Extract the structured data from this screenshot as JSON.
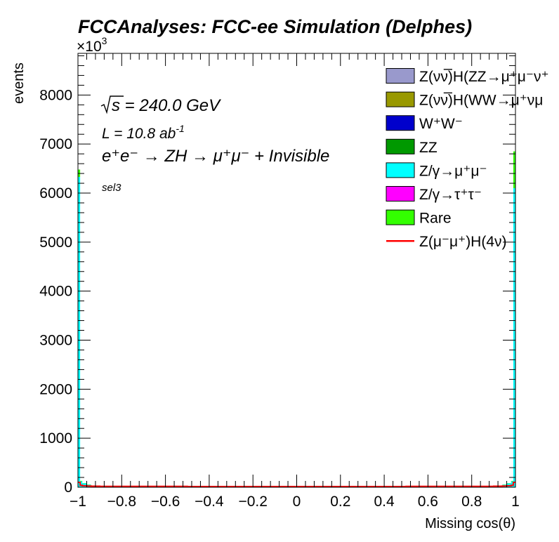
{
  "chart_data": {
    "type": "bar",
    "title": "FCCAnalyses: FCC-ee Simulation (Delphes)",
    "xlabel": "Missing cos(θ)",
    "ylabel": "events",
    "y_multiplier": "×10",
    "y_multiplier_exp": "3",
    "xlim": [
      -1,
      1
    ],
    "ylim": [
      0,
      8850
    ],
    "x_ticks": [
      -1,
      -0.8,
      -0.6,
      -0.4,
      -0.2,
      0,
      0.2,
      0.4,
      0.6,
      0.8,
      1
    ],
    "x_tick_labels": [
      "−1",
      "−0.8",
      "−0.6",
      "−0.4",
      "−0.2",
      "0",
      "0.2",
      "0.4",
      "0.6",
      "0.8",
      "1"
    ],
    "y_ticks": [
      0,
      1000,
      2000,
      3000,
      4000,
      5000,
      6000,
      7000,
      8000
    ],
    "y_tick_labels": [
      "0",
      "1000",
      "2000",
      "3000",
      "4000",
      "5000",
      "6000",
      "7000",
      "8000"
    ],
    "annotations": {
      "sqrt_s": "s",
      "energy": " = 240.0 GeV",
      "lumi_base": "L = 10.8 ab",
      "lumi_exp": "-1",
      "process": "e⁺e⁻ → ZH → μ⁺μ⁻ + Invisible",
      "selection": "sel3"
    },
    "legend": [
      {
        "label": "Z(νν̅)H(ZZ→μ⁺μ⁻ν⁺",
        "color": "#9999cc",
        "kind": "box"
      },
      {
        "label": "Z(νν̅)H(WW→μ⁺νμ",
        "color": "#999900",
        "kind": "box"
      },
      {
        "label": "W⁺W⁻",
        "color": "#0000cc",
        "kind": "box"
      },
      {
        "label": "ZZ",
        "color": "#009900",
        "kind": "box"
      },
      {
        "label": "Z/γ→μ⁺μ⁻",
        "color": "#00ffff",
        "kind": "box"
      },
      {
        "label": "Z/γ→τ⁺τ⁻",
        "color": "#ff00ff",
        "kind": "box"
      },
      {
        "label": "Rare",
        "color": "#33ff00",
        "kind": "box"
      },
      {
        "label": "Z(μ⁻μ⁺)H(4ν)",
        "color": "#ff0000",
        "kind": "line"
      }
    ],
    "bins": [
      {
        "x0": -1.0,
        "x1": -0.99,
        "stack": [
          0,
          0,
          0,
          0,
          6330,
          0,
          150
        ],
        "signal": 100
      },
      {
        "x0": -0.99,
        "x1": -0.98,
        "stack": [
          0,
          0,
          0,
          5,
          115,
          0,
          10
        ],
        "signal": 40
      },
      {
        "x0": -0.98,
        "x1": -0.96,
        "stack": [
          0,
          0,
          0,
          5,
          75,
          0,
          5
        ],
        "signal": 30
      },
      {
        "x0": -0.96,
        "x1": -0.94,
        "stack": [
          0,
          0,
          0,
          5,
          45,
          0,
          5
        ],
        "signal": 25
      },
      {
        "x0": -0.94,
        "x1": -0.9,
        "stack": [
          0,
          0,
          0,
          3,
          30,
          0,
          3
        ],
        "signal": 22
      },
      {
        "x0": -0.9,
        "x1": -0.5,
        "stack": [
          0,
          0,
          0,
          2,
          15,
          0,
          3
        ],
        "signal": 18
      },
      {
        "x0": -0.5,
        "x1": 0.5,
        "stack": [
          0,
          0,
          0,
          2,
          10,
          0,
          2
        ],
        "signal": 15
      },
      {
        "x0": 0.5,
        "x1": 0.9,
        "stack": [
          0,
          0,
          0,
          2,
          15,
          0,
          3
        ],
        "signal": 18
      },
      {
        "x0": 0.9,
        "x1": 0.94,
        "stack": [
          0,
          0,
          0,
          3,
          30,
          0,
          3
        ],
        "signal": 22
      },
      {
        "x0": 0.94,
        "x1": 0.96,
        "stack": [
          0,
          0,
          0,
          5,
          45,
          0,
          5
        ],
        "signal": 25
      },
      {
        "x0": 0.96,
        "x1": 0.98,
        "stack": [
          0,
          0,
          0,
          5,
          75,
          0,
          5
        ],
        "signal": 30
      },
      {
        "x0": 0.98,
        "x1": 0.99,
        "stack": [
          0,
          0,
          0,
          5,
          115,
          0,
          10
        ],
        "signal": 40
      },
      {
        "x0": 0.99,
        "x1": 1.0,
        "stack": [
          0,
          0,
          0,
          0,
          6100,
          0,
          750
        ],
        "signal": 100
      }
    ]
  }
}
